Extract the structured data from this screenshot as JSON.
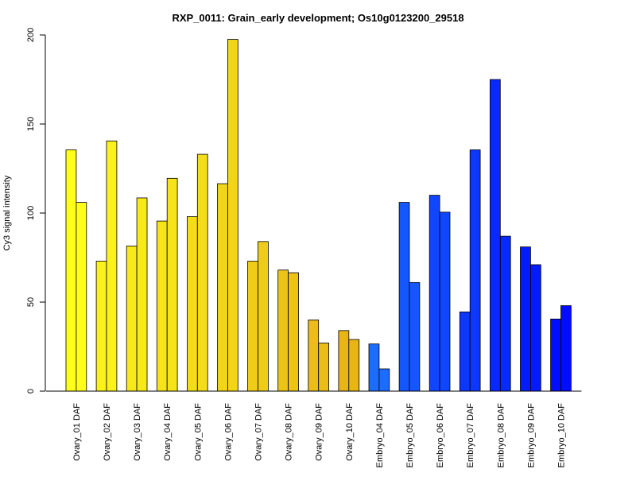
{
  "chart_data": {
    "type": "bar",
    "title": "RXP_0011: Grain_early development; Os10g0123200_29518",
    "xlabel": "",
    "ylabel": "Cy3 signal intensity",
    "ylim": [
      0,
      200
    ],
    "yticks": [
      0,
      50,
      100,
      150,
      200
    ],
    "grid": false,
    "bars_per_category": 2,
    "categories": [
      "Ovary_01 DAF",
      "Ovary_02 DAF",
      "Ovary_03 DAF",
      "Ovary_04 DAF",
      "Ovary_05 DAF",
      "Ovary_06 DAF",
      "Ovary_07 DAF",
      "Ovary_08 DAF",
      "Ovary_09 DAF",
      "Ovary_10 DAF",
      "Embryo_04 DAF",
      "Embryo_05 DAF",
      "Embryo_06 DAF",
      "Embryo_07 DAF",
      "Embryo_08 DAF",
      "Embryo_09 DAF",
      "Embryo_10 DAF"
    ],
    "values": [
      [
        135.5,
        106
      ],
      [
        73,
        140.5
      ],
      [
        81.5,
        108.5
      ],
      [
        95.5,
        119.5
      ],
      [
        98,
        133
      ],
      [
        116.5,
        197.5
      ],
      [
        73,
        84
      ],
      [
        68,
        66.5
      ],
      [
        40,
        27
      ],
      [
        34,
        29
      ],
      [
        26.5,
        12.5
      ],
      [
        106,
        61
      ],
      [
        110,
        100.5
      ],
      [
        44.5,
        135.5
      ],
      [
        175,
        87
      ],
      [
        81,
        71
      ],
      [
        40.5,
        48
      ]
    ],
    "colors": [
      "#ffff1a",
      "#fbf21a",
      "#f8ea19",
      "#f6e319",
      "#f4dc18",
      "#f2d518",
      "#efcc17",
      "#edc416",
      "#ebbd16",
      "#e9b515",
      "#1a6dff",
      "#1457ff",
      "#1046ff",
      "#0c37ff",
      "#0829ff",
      "#041bff",
      "#000dff"
    ]
  }
}
